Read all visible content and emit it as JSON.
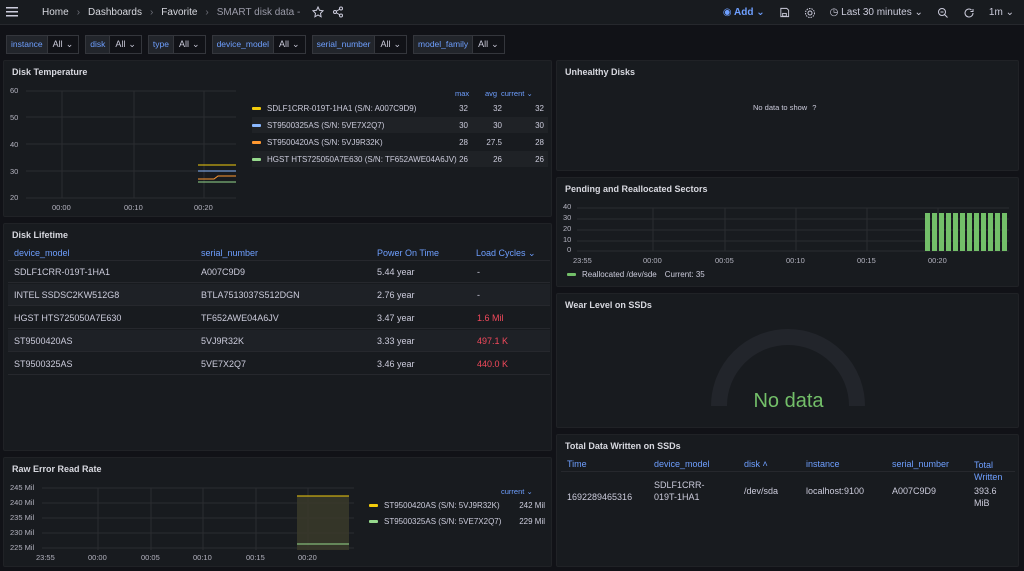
{
  "breadcrumb": {
    "home": "Home",
    "dashboards": "Dashboards",
    "favorite": "Favorite",
    "current": "SMART disk data -"
  },
  "toolbar": {
    "add": "Add",
    "time_range": "Last 30 minutes",
    "refresh_interval": "1m"
  },
  "variables": [
    {
      "label": "instance",
      "value": "All"
    },
    {
      "label": "disk",
      "value": "All"
    },
    {
      "label": "type",
      "value": "All"
    },
    {
      "label": "device_model",
      "value": "All"
    },
    {
      "label": "serial_number",
      "value": "All"
    },
    {
      "label": "model_family",
      "value": "All"
    }
  ],
  "panels": {
    "disk_temperature": {
      "title": "Disk Temperature",
      "y_ticks": [
        "60",
        "50",
        "40",
        "30",
        "20"
      ],
      "x_ticks": [
        "00:00",
        "00:10",
        "00:20"
      ],
      "legend_headers": {
        "max": "max",
        "avg": "avg",
        "current": "current"
      },
      "series": [
        {
          "name": "SDLF1CRR-019T-1HA1 (S/N: A007C9D9)",
          "max": "32",
          "avg": "32",
          "current": "32",
          "color": "#f2cc0c"
        },
        {
          "name": "ST9500325AS (S/N: 5VE7X2Q7)",
          "max": "30",
          "avg": "30",
          "current": "30",
          "color": "#8ab8ff"
        },
        {
          "name": "ST9500420AS (S/N: 5VJ9R32K)",
          "max": "28",
          "avg": "27.5",
          "current": "28",
          "color": "#ff9830"
        },
        {
          "name": "HGST HTS725050A7E630 (S/N: TF652AWE04A6JV)",
          "max": "26",
          "avg": "26",
          "current": "26",
          "color": "#96d98d"
        }
      ]
    },
    "unhealthy_disks": {
      "title": "Unhealthy Disks",
      "no_data": "No data to show"
    },
    "pending_sectors": {
      "title": "Pending and Reallocated Sectors",
      "y_ticks": [
        "40",
        "30",
        "20",
        "10",
        "0"
      ],
      "x_ticks": [
        "23:55",
        "00:00",
        "00:05",
        "00:10",
        "00:15",
        "00:20"
      ],
      "legend": {
        "name": "Reallocated /dev/sde",
        "current": "Current: 35",
        "color": "#73bf69"
      }
    },
    "disk_lifetime": {
      "title": "Disk Lifetime",
      "columns": [
        "device_model",
        "serial_number",
        "Power On Time",
        "Load Cycles"
      ],
      "rows": [
        {
          "model": "SDLF1CRR-019T-1HA1",
          "serial": "A007C9D9",
          "power": "5.44 year",
          "cycles": "-"
        },
        {
          "model": "INTEL SSDSC2KW512G8",
          "serial": "BTLA7513037S512DGN",
          "power": "2.76 year",
          "cycles": "-"
        },
        {
          "model": "HGST HTS725050A7E630",
          "serial": "TF652AWE04A6JV",
          "power": "3.47 year",
          "cycles": "1.6 Mil"
        },
        {
          "model": "ST9500420AS",
          "serial": "5VJ9R32K",
          "power": "3.33 year",
          "cycles": "497.1 K"
        },
        {
          "model": "ST9500325AS",
          "serial": "5VE7X2Q7",
          "power": "3.46 year",
          "cycles": "440.0 K"
        }
      ]
    },
    "wear_level": {
      "title": "Wear Level on SSDs",
      "no_data": "No data"
    },
    "total_written": {
      "title": "Total Data Written on SSDs",
      "columns": [
        "Time",
        "device_model",
        "disk",
        "instance",
        "serial_number",
        "Total Written"
      ],
      "row": {
        "time": "1692289465316",
        "model_line1": "SDLF1CRR-",
        "model_line2": "019T-1HA1",
        "disk": "/dev/sda",
        "instance": "localhost:9100",
        "serial": "A007C9D9",
        "written_line1": "393.6",
        "written_line2": "MiB"
      }
    },
    "raw_error": {
      "title": "Raw Error Read Rate",
      "y_ticks": [
        "245 Mil",
        "240 Mil",
        "235 Mil",
        "230 Mil",
        "225 Mil"
      ],
      "x_ticks": [
        "23:55",
        "00:00",
        "00:05",
        "00:10",
        "00:15",
        "00:20"
      ],
      "legend_header": "current",
      "series": [
        {
          "name": "ST9500420AS (S/N: 5VJ9R32K)",
          "current": "242 Mil",
          "color": "#f2cc0c"
        },
        {
          "name": "ST9500325AS (S/N: 5VE7X2Q7)",
          "current": "229 Mil",
          "color": "#96d98d"
        }
      ]
    }
  }
}
